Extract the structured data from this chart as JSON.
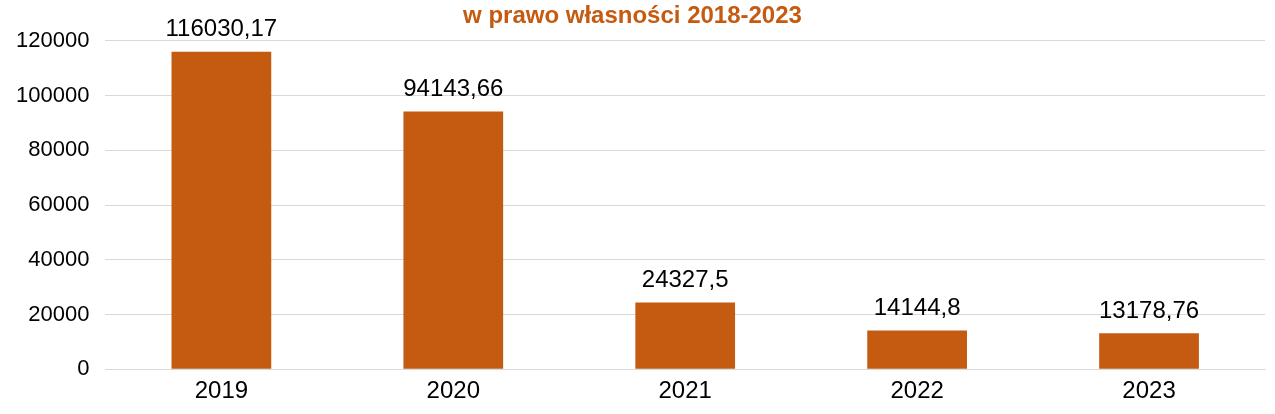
{
  "chart_data": {
    "type": "bar",
    "title": "w prawo własności 2018-2023",
    "categories": [
      "2019",
      "2020",
      "2021",
      "2022",
      "2023"
    ],
    "values": [
      116030.17,
      94143.66,
      24327.5,
      14144.8,
      13178.76
    ],
    "value_labels": [
      "116030,17",
      "94143,66",
      "24327,5",
      "14144,8",
      "13178,76"
    ],
    "color": "#c55a11",
    "ylim": [
      0,
      120000
    ],
    "yticks": [
      0,
      20000,
      40000,
      60000,
      80000,
      100000,
      120000
    ],
    "grid": "y",
    "legend": false
  }
}
